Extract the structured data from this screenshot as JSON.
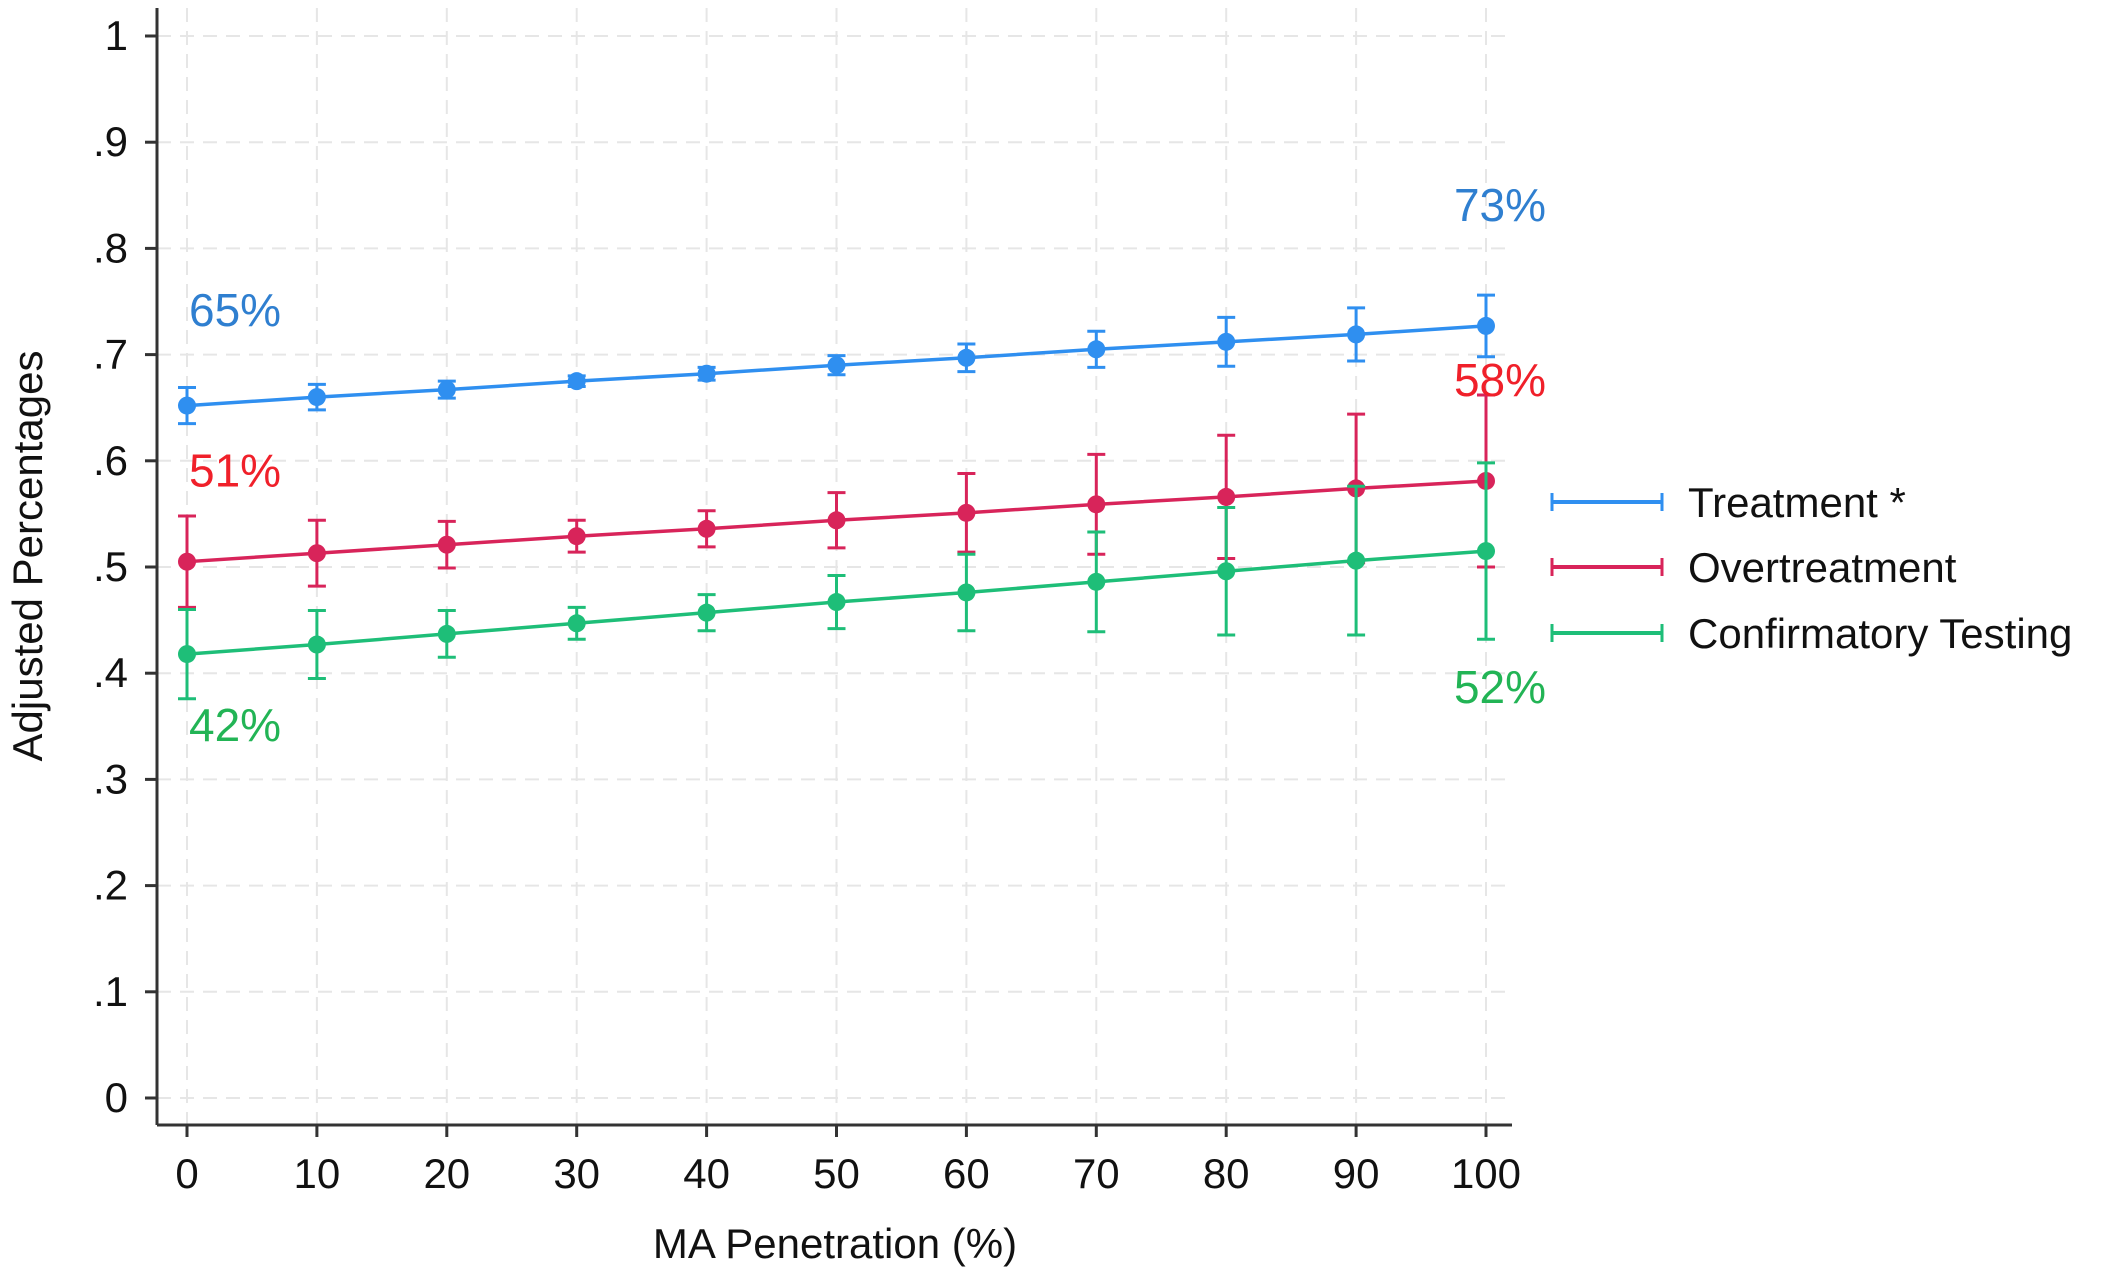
{
  "chart_data": {
    "type": "line",
    "title": "",
    "xlabel": "MA Penetration (%)",
    "ylabel": "Adjusted Percentages",
    "x": [
      0,
      10,
      20,
      30,
      40,
      50,
      60,
      70,
      80,
      90,
      100
    ],
    "xlim": [
      0,
      100
    ],
    "ylim": [
      0,
      1
    ],
    "x_ticks": [
      0,
      10,
      20,
      30,
      40,
      50,
      60,
      70,
      80,
      90,
      100
    ],
    "x_tick_labels": [
      "0",
      "10",
      "20",
      "30",
      "40",
      "50",
      "60",
      "70",
      "80",
      "90",
      "100"
    ],
    "y_ticks": [
      0,
      0.1,
      0.2,
      0.3,
      0.4,
      0.5,
      0.6,
      0.7,
      0.8,
      0.9,
      1
    ],
    "y_tick_labels": [
      "0",
      ".1",
      ".2",
      ".3",
      ".4",
      ".5",
      ".6",
      ".7",
      ".8",
      ".9",
      "1"
    ],
    "grid": true,
    "legend_position": "right",
    "error_bars": true,
    "series": [
      {
        "name": "Treatment  *",
        "color": "#2f8ff0",
        "values": [
          0.652,
          0.66,
          0.667,
          0.675,
          0.682,
          0.69,
          0.697,
          0.705,
          0.712,
          0.719,
          0.727
        ],
        "lower": [
          0.635,
          0.648,
          0.659,
          0.67,
          0.676,
          0.681,
          0.684,
          0.688,
          0.689,
          0.694,
          0.698
        ],
        "upper": [
          0.669,
          0.672,
          0.675,
          0.68,
          0.688,
          0.699,
          0.71,
          0.722,
          0.735,
          0.744,
          0.756
        ]
      },
      {
        "name": "Overtreatment",
        "color": "#d8245a",
        "values": [
          0.505,
          0.513,
          0.521,
          0.529,
          0.536,
          0.544,
          0.551,
          0.559,
          0.566,
          0.574,
          0.581
        ],
        "lower": [
          0.462,
          0.482,
          0.499,
          0.514,
          0.519,
          0.518,
          0.514,
          0.512,
          0.508,
          0.504,
          0.5
        ],
        "upper": [
          0.548,
          0.544,
          0.543,
          0.544,
          0.553,
          0.57,
          0.588,
          0.606,
          0.624,
          0.644,
          0.662
        ]
      },
      {
        "name": "Confirmatory Testing",
        "color": "#1ebe78",
        "values": [
          0.418,
          0.427,
          0.437,
          0.447,
          0.457,
          0.467,
          0.476,
          0.486,
          0.496,
          0.506,
          0.515
        ],
        "lower": [
          0.376,
          0.395,
          0.415,
          0.432,
          0.44,
          0.442,
          0.44,
          0.439,
          0.436,
          0.436,
          0.432
        ],
        "upper": [
          0.46,
          0.459,
          0.459,
          0.462,
          0.474,
          0.492,
          0.512,
          0.533,
          0.556,
          0.576,
          0.598
        ]
      }
    ],
    "annotations": [
      {
        "text": "65%",
        "x": 0,
        "y": 0.727,
        "color": "#2f7fd0"
      },
      {
        "text": "73%",
        "x": 100,
        "y": 0.826,
        "color": "#2f7fd0"
      },
      {
        "text": "51%",
        "x": 0,
        "y": 0.576,
        "color": "#f0202a"
      },
      {
        "text": "58%",
        "x": 100,
        "y": 0.661,
        "color": "#f0202a"
      },
      {
        "text": "42%",
        "x": 0,
        "y": 0.336,
        "color": "#22b455"
      },
      {
        "text": "52%",
        "x": 100,
        "y": 0.372,
        "color": "#22b455"
      }
    ]
  }
}
